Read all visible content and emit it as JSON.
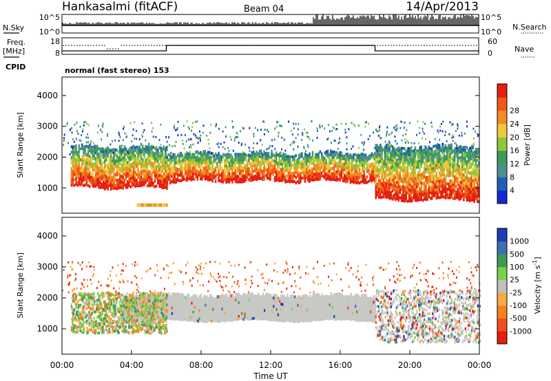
{
  "header": {
    "station": "Hankasalmi (fitACF)",
    "beam": "Beam 04",
    "date": "14/Apr/2013"
  },
  "params": {
    "nsky_label": "N.Sky",
    "nsky_ticks": [
      "10^5",
      "10^0"
    ],
    "nsearch_label": "N.Search",
    "nsearch_ticks": [
      "10^5",
      "10^0"
    ],
    "freq_label_1": "Freq.",
    "freq_label_2": "[MHz]",
    "freq_ticks": [
      "18",
      "8"
    ],
    "nave_label": "Nave",
    "nave_ticks": [
      "60",
      "0"
    ],
    "cpid_label": "CPID",
    "cpid_text": "normal (fast stereo) 153"
  },
  "colors": {
    "power": [
      "#1428d2",
      "#2060b4",
      "#4f8f8f",
      "#3c9a58",
      "#8cc83c",
      "#f0c83c",
      "#f08c28",
      "#f05a14",
      "#e61e14"
    ],
    "velocity": [
      "#e61e14",
      "#f04e1e",
      "#f5821e",
      "#f5aa46",
      "#c0c0c0",
      "#78d246",
      "#3c9a58",
      "#3c70b4",
      "#1e3cb4"
    ],
    "ground_scatter": "#c8c8c4"
  },
  "chart_data": [
    {
      "type": "heatmap",
      "name": "power",
      "title": "",
      "xlabel": "Time UT",
      "ylabel": "Slant Range [km]",
      "xlim": [
        "00:00",
        "24:00"
      ],
      "ylim": [
        180,
        4600
      ],
      "x_ticks": [
        "00:00",
        "04:00",
        "08:00",
        "12:00",
        "16:00",
        "20:00",
        "00:00"
      ],
      "y_ticks": [
        1000,
        2000,
        3000,
        4000
      ],
      "colorbar": {
        "label": "Power [dB]",
        "ticks": [
          4,
          8,
          12,
          16,
          20,
          24,
          28
        ],
        "range": [
          0,
          30
        ]
      },
      "bands": [
        {
          "x": [
            0.5,
            6.0
          ],
          "lower": 1000,
          "upper": 2300,
          "peak_value": 26
        },
        {
          "x": [
            6.0,
            18.0
          ],
          "lower": 1200,
          "upper": 2100,
          "peak_value": 22
        },
        {
          "x": [
            18.0,
            24.0
          ],
          "lower": 600,
          "upper": 2300,
          "peak_value": 27
        }
      ]
    },
    {
      "type": "heatmap",
      "name": "velocity",
      "title": "",
      "xlabel": "Time UT",
      "ylabel": "Slant Range [km]",
      "xlim": [
        "00:00",
        "24:00"
      ],
      "ylim": [
        180,
        4600
      ],
      "x_ticks": [
        "00:00",
        "04:00",
        "08:00",
        "12:00",
        "16:00",
        "20:00",
        "00:00"
      ],
      "y_ticks": [
        1000,
        2000,
        3000,
        4000
      ],
      "colorbar": {
        "label": "Velocity [m s^-1]",
        "ticks": [
          "1000",
          "500",
          "100",
          "25",
          "-25",
          "-100",
          "-500",
          "-1000"
        ]
      },
      "ground_scatter_band": {
        "x": [
          3.5,
          18.0
        ],
        "lower": 1250,
        "upper": 2050
      }
    }
  ]
}
